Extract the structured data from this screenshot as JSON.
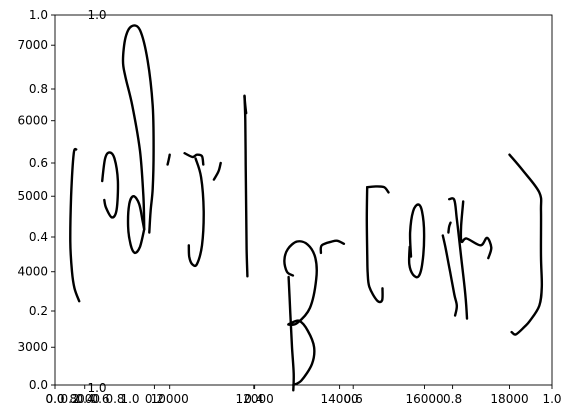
{
  "chart_data": {
    "type": "line",
    "title": "",
    "xlabel": "",
    "ylabel": "",
    "grid": false,
    "legend": "none",
    "axes": {
      "primary": {
        "x_ticks": [
          "0.0",
          "0.2",
          "0.4",
          "0.6",
          "0.8",
          "1.0"
        ],
        "y_ticks": [
          "0.0",
          "0.2",
          "0.4",
          "0.6",
          "0.8",
          "1.0"
        ],
        "xlim": [
          0,
          1
        ],
        "ylim": [
          0,
          1
        ]
      },
      "secondary": {
        "x_ticks": [
          "8000",
          "10000",
          "12000",
          "14000",
          "16000",
          "18000"
        ],
        "y_ticks": [
          "3000",
          "4000",
          "5000",
          "6000",
          "7000"
        ],
        "xlim": [
          7300,
          19000
        ],
        "ylim": [
          2500,
          7400
        ]
      },
      "inset": {
        "x_ticks": [
          "0.0",
          "0.2",
          "0.4",
          "0.6",
          "0.8",
          "1.0"
        ],
        "y_ticks": [
          "0.0",
          "1.0"
        ],
        "xlim": [
          0,
          1
        ],
        "ylim": [
          0,
          1
        ]
      }
    },
    "series": [
      {
        "points": [
          [
            7800,
            5620
          ],
          [
            7740,
            5560
          ],
          [
            7680,
            5000
          ],
          [
            7660,
            4400
          ],
          [
            7700,
            4000
          ],
          [
            7760,
            3780
          ],
          [
            7870,
            3610
          ]
        ]
      },
      {
        "points": [
          [
            8410,
            5200
          ],
          [
            8480,
            5500
          ],
          [
            8580,
            5580
          ],
          [
            8700,
            5500
          ],
          [
            8780,
            5200
          ],
          [
            8750,
            4820
          ],
          [
            8640,
            4720
          ],
          [
            8500,
            4850
          ],
          [
            8460,
            4950
          ]
        ]
      },
      {
        "points": [
          [
            9400,
            4560
          ],
          [
            9380,
            5000
          ],
          [
            9300,
            5600
          ],
          [
            9120,
            6200
          ],
          [
            8950,
            6600
          ],
          [
            8900,
            6800
          ],
          [
            8960,
            7100
          ],
          [
            9100,
            7250
          ],
          [
            9300,
            7200
          ],
          [
            9480,
            6800
          ],
          [
            9600,
            6200
          ],
          [
            9620,
            5600
          ],
          [
            9600,
            5100
          ],
          [
            9550,
            4800
          ],
          [
            9520,
            4520
          ]
        ]
      },
      {
        "points": [
          [
            9400,
            4560
          ],
          [
            9300,
            4330
          ],
          [
            9180,
            4250
          ],
          [
            9080,
            4360
          ],
          [
            9020,
            4600
          ],
          [
            9050,
            4900
          ],
          [
            9150,
            5000
          ],
          [
            9280,
            4900
          ],
          [
            9360,
            4680
          ],
          [
            9400,
            4560
          ]
        ]
      },
      {
        "points": [
          [
            9950,
            5420
          ],
          [
            9980,
            5490
          ],
          [
            10000,
            5550
          ]
        ]
      },
      {
        "points": [
          [
            10350,
            5570
          ],
          [
            10540,
            5520
          ],
          [
            10640,
            5550
          ],
          [
            10760,
            5530
          ],
          [
            10790,
            5420
          ]
        ]
      },
      {
        "points": [
          [
            10610,
            5500
          ],
          [
            10740,
            5250
          ],
          [
            10800,
            4800
          ],
          [
            10760,
            4350
          ],
          [
            10640,
            4100
          ],
          [
            10530,
            4100
          ],
          [
            10460,
            4200
          ],
          [
            10450,
            4350
          ]
        ]
      },
      {
        "points": [
          [
            11040,
            5220
          ],
          [
            11150,
            5330
          ],
          [
            11200,
            5440
          ]
        ]
      },
      {
        "points": [
          [
            11760,
            6330
          ],
          [
            11780,
            6000
          ],
          [
            11790,
            5400
          ],
          [
            11800,
            4800
          ],
          [
            11810,
            4300
          ],
          [
            11830,
            3940
          ]
        ]
      },
      {
        "points": [
          [
            11760,
            6330
          ],
          [
            11780,
            6200
          ],
          [
            11800,
            6100
          ]
        ]
      },
      {
        "points": [
          [
            13560,
            4250
          ],
          [
            13580,
            4350
          ],
          [
            13820,
            4400
          ],
          [
            13950,
            4410
          ],
          [
            14100,
            4370
          ]
        ]
      },
      {
        "points": [
          [
            12800,
            3930
          ],
          [
            12840,
            3450
          ],
          [
            12880,
            3000
          ],
          [
            12920,
            2650
          ],
          [
            12910,
            2430
          ]
        ]
      },
      {
        "points": [
          [
            12910,
            2500
          ],
          [
            13100,
            2560
          ],
          [
            13350,
            2780
          ],
          [
            13400,
            3000
          ],
          [
            13250,
            3220
          ],
          [
            13050,
            3350
          ],
          [
            12860,
            3320
          ],
          [
            12800,
            3300
          ],
          [
            13000,
            3320
          ],
          [
            13300,
            3520
          ],
          [
            13450,
            3900
          ],
          [
            13430,
            4180
          ],
          [
            13250,
            4360
          ],
          [
            13000,
            4400
          ],
          [
            12780,
            4300
          ],
          [
            12700,
            4150
          ],
          [
            12760,
            4000
          ],
          [
            12900,
            3950
          ]
        ]
      },
      {
        "points": [
          [
            14650,
            5120
          ],
          [
            14640,
            4700
          ],
          [
            14650,
            4250
          ],
          [
            14660,
            4000
          ],
          [
            14700,
            3800
          ],
          [
            14880,
            3620
          ],
          [
            15000,
            3620
          ],
          [
            15010,
            3780
          ]
        ]
      },
      {
        "points": [
          [
            14650,
            5120
          ],
          [
            14850,
            5130
          ],
          [
            15050,
            5120
          ],
          [
            15150,
            5050
          ]
        ]
      },
      {
        "points": [
          [
            15650,
            4330
          ],
          [
            15640,
            4100
          ],
          [
            15730,
            3960
          ],
          [
            15860,
            3940
          ],
          [
            15950,
            4120
          ],
          [
            15990,
            4500
          ],
          [
            15940,
            4800
          ],
          [
            15850,
            4890
          ],
          [
            15730,
            4800
          ],
          [
            15660,
            4520
          ],
          [
            15680,
            4200
          ]
        ]
      },
      {
        "points": [
          [
            16610,
            4650
          ],
          [
            16580,
            4600
          ],
          [
            16560,
            4520
          ]
        ]
      },
      {
        "points": [
          [
            16910,
            4930
          ],
          [
            16860,
            4600
          ],
          [
            16870,
            4400
          ],
          [
            16990,
            4440
          ],
          [
            17320,
            4350
          ],
          [
            17470,
            4450
          ],
          [
            17570,
            4320
          ],
          [
            17500,
            4180
          ]
        ]
      },
      {
        "points": [
          [
            16430,
            4480
          ],
          [
            16500,
            4300
          ],
          [
            16600,
            4000
          ],
          [
            16700,
            3700
          ],
          [
            16760,
            3550
          ],
          [
            16720,
            3420
          ]
        ]
      },
      {
        "points": [
          [
            16580,
            4960
          ],
          [
            16700,
            4950
          ],
          [
            16760,
            4700
          ],
          [
            16860,
            4200
          ],
          [
            16960,
            3700
          ],
          [
            17000,
            3380
          ]
        ]
      },
      {
        "points": [
          [
            18000,
            5550
          ],
          [
            18300,
            5350
          ],
          [
            18700,
            5050
          ],
          [
            18740,
            4800
          ],
          [
            18740,
            4200
          ],
          [
            18760,
            3800
          ],
          [
            18700,
            3550
          ],
          [
            18480,
            3350
          ],
          [
            18350,
            3270
          ],
          [
            18150,
            3170
          ],
          [
            18050,
            3200
          ]
        ]
      }
    ]
  }
}
